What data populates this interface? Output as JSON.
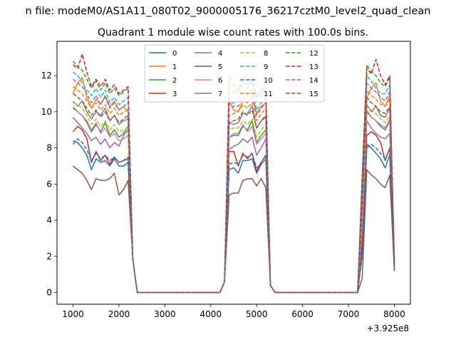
{
  "chart_data": {
    "type": "line",
    "suptitle": "n file: modeM0/AS1A11_080T02_9000005176_36217cztM0_level2_quad_clean",
    "title": "Quadrant 1 module wise count rates with 100.0s bins.",
    "xlabel": "",
    "ylabel": "",
    "x_offset_label": "+3.925e8",
    "xlim": [
      650,
      8350
    ],
    "ylim": [
      -0.65,
      13.9
    ],
    "x_ticks": [
      1000,
      2000,
      3000,
      4000,
      5000,
      6000,
      7000,
      8000
    ],
    "x_tick_labels": [
      "1000",
      "2000",
      "3000",
      "4000",
      "5000",
      "6000",
      "7000",
      "8000"
    ],
    "y_ticks": [
      0,
      2,
      4,
      6,
      8,
      10,
      12
    ],
    "y_tick_labels": [
      "0",
      "2",
      "4",
      "6",
      "8",
      "10",
      "12"
    ],
    "legend": {
      "location": "upper center",
      "ncol": 4
    },
    "x": [
      1000,
      1100,
      1200,
      1300,
      1400,
      1500,
      1600,
      1700,
      1800,
      1900,
      2000,
      2100,
      2200,
      2300,
      2350,
      2400,
      2500,
      2600,
      2700,
      2800,
      2900,
      3000,
      3100,
      3200,
      3300,
      3400,
      3500,
      3600,
      3700,
      3800,
      3900,
      4000,
      4100,
      4200,
      4300,
      4400,
      4500,
      4600,
      4700,
      4800,
      4900,
      5000,
      5100,
      5200,
      5300,
      5400,
      5500,
      5600,
      5700,
      5800,
      5900,
      6000,
      6100,
      6200,
      6300,
      6400,
      6500,
      6600,
      6700,
      6800,
      6900,
      7000,
      7100,
      7200,
      7300,
      7400,
      7500,
      7600,
      7700,
      7800,
      7900,
      8000
    ],
    "series": [
      {
        "name": "0",
        "color": "#1f77b4",
        "dash": "solid",
        "gap": 0.0,
        "act": [
          8.4,
          8.3,
          8.0,
          7.6,
          6.8,
          7.4,
          7.2,
          7.3,
          7.0,
          7.4,
          7.0,
          7.0,
          7.2
        ]
      },
      {
        "name": "1",
        "color": "#ff7f0e",
        "dash": "solid",
        "gap": 0.03,
        "act": [
          11.0,
          11.6,
          11.9,
          10.8,
          10.2,
          10.7,
          10.4,
          10.9,
          10.3,
          10.6,
          10.1,
          10.3,
          10.0
        ]
      },
      {
        "name": "2",
        "color": "#2ca02c",
        "dash": "solid",
        "gap": 0.0,
        "act": [
          10.2,
          10.0,
          9.8,
          9.4,
          8.9,
          9.3,
          8.9,
          9.4,
          8.7,
          9.0,
          8.6,
          8.8,
          9.2
        ]
      },
      {
        "name": "3",
        "color": "#d62728",
        "dash": "solid",
        "gap": 0.0,
        "act": [
          8.9,
          9.2,
          9.0,
          8.5,
          7.2,
          7.8,
          7.3,
          7.6,
          7.1,
          7.5,
          7.2,
          7.3,
          7.4
        ]
      },
      {
        "name": "4",
        "color": "#9467bd",
        "dash": "solid",
        "gap": 0.0,
        "act": [
          9.7,
          9.4,
          9.1,
          8.8,
          8.4,
          8.6,
          8.2,
          8.5,
          8.0,
          8.3,
          8.1,
          8.7,
          9.0
        ]
      },
      {
        "name": "5",
        "color": "#8c564b",
        "dash": "solid",
        "gap": 0.0,
        "act": [
          7.0,
          6.8,
          6.6,
          6.2,
          5.7,
          6.3,
          6.2,
          6.2,
          6.3,
          6.6,
          5.4,
          5.7,
          6.2
        ]
      },
      {
        "name": "6",
        "color": "#e377c2",
        "dash": "solid",
        "gap": 0.02,
        "act": [
          10.3,
          10.0,
          9.8,
          9.5,
          9.0,
          9.4,
          8.8,
          9.1,
          8.6,
          8.8,
          8.4,
          8.5,
          8.7
        ]
      },
      {
        "name": "7",
        "color": "#7f7f7f",
        "dash": "solid",
        "gap": 0.0,
        "act": [
          10.6,
          10.3,
          10.6,
          10.0,
          9.6,
          10.0,
          9.8,
          10.2,
          9.5,
          9.8,
          9.3,
          9.5,
          9.6
        ]
      },
      {
        "name": "8",
        "color": "#bcbd22",
        "dash": "dashed",
        "gap": 0.0,
        "act": [
          10.5,
          10.4,
          10.2,
          9.8,
          9.3,
          9.6,
          9.2,
          9.5,
          9.0,
          9.3,
          8.9,
          9.0,
          9.1
        ]
      },
      {
        "name": "9",
        "color": "#17becf",
        "dash": "dashed",
        "gap": 0.0,
        "act": [
          12.2,
          12.0,
          11.6,
          11.2,
          10.9,
          11.3,
          10.8,
          11.2,
          10.5,
          10.8,
          10.4,
          10.6,
          10.8
        ]
      },
      {
        "name": "10",
        "color": "#1f77b4",
        "dash": "dashed",
        "gap": 0.0,
        "act": [
          8.2,
          8.5,
          8.3,
          7.9,
          7.3,
          7.7,
          7.4,
          7.6,
          7.3,
          7.5,
          7.2,
          7.3,
          7.5
        ]
      },
      {
        "name": "11",
        "color": "#ff7f0e",
        "dash": "dashed",
        "gap": 0.0,
        "act": [
          11.4,
          11.2,
          11.0,
          10.6,
          10.2,
          10.5,
          10.1,
          10.4,
          9.9,
          10.2,
          9.8,
          10.0,
          10.1
        ]
      },
      {
        "name": "12",
        "color": "#2ca02c",
        "dash": "dashed",
        "gap": 0.0,
        "act": [
          12.8,
          12.5,
          12.3,
          11.8,
          11.3,
          11.7,
          11.2,
          11.6,
          11.0,
          11.3,
          10.9,
          11.1,
          11.3
        ]
      },
      {
        "name": "13",
        "color": "#d62728",
        "dash": "dashed",
        "gap": 0.0,
        "act": [
          12.6,
          12.4,
          13.2,
          12.2,
          11.4,
          11.8,
          11.4,
          11.8,
          11.2,
          11.5,
          11.0,
          11.2,
          11.4
        ]
      },
      {
        "name": "14",
        "color": "#9467bd",
        "dash": "dashed",
        "gap": 0.0,
        "act": [
          11.8,
          11.6,
          11.4,
          11.0,
          10.5,
          10.9,
          10.4,
          10.8,
          10.2,
          10.5,
          10.1,
          10.3,
          10.5
        ]
      },
      {
        "name": "15",
        "color": "#8c564b",
        "dash": "dashed",
        "gap": 0.0,
        "act": [
          11.0,
          10.8,
          10.6,
          10.2,
          9.8,
          10.1,
          9.7,
          10.0,
          9.5,
          9.8,
          9.4,
          9.6,
          9.8
        ]
      }
    ]
  }
}
